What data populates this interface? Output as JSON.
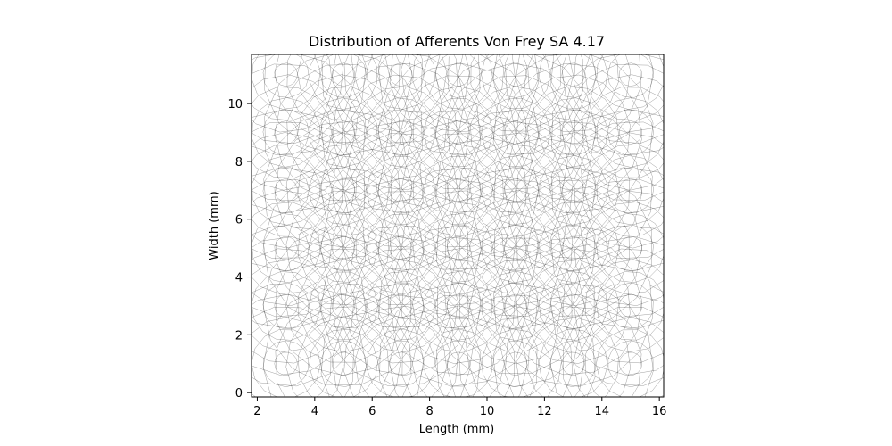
{
  "chart_data": {
    "type": "scatter",
    "title": "Distribution of Afferents Von Frey SA 4.17",
    "xlabel": "Length (mm)",
    "ylabel": "Width (mm)",
    "xlim": [
      1.8,
      16.15
    ],
    "ylim": [
      -0.15,
      11.7
    ],
    "x_ticks": [
      2,
      4,
      6,
      8,
      10,
      12,
      14,
      16
    ],
    "y_ticks": [
      0,
      2,
      4,
      6,
      8,
      10
    ],
    "x_tick_labels": [
      "2",
      "4",
      "6",
      "8",
      "10",
      "12",
      "14",
      "16"
    ],
    "y_tick_labels": [
      "0",
      "2",
      "4",
      "6",
      "8",
      "10"
    ],
    "grid": false,
    "legend": "none",
    "ring_color": "#000000",
    "rings": {
      "centers_x": [
        3,
        5,
        7,
        9,
        11,
        13,
        15
      ],
      "centers_y": [
        1,
        3,
        5,
        7,
        9,
        11
      ],
      "radii": [
        0.4,
        0.8,
        1.2,
        1.6,
        2.0,
        2.4,
        2.8
      ],
      "segments_per_ring": 14
    }
  }
}
